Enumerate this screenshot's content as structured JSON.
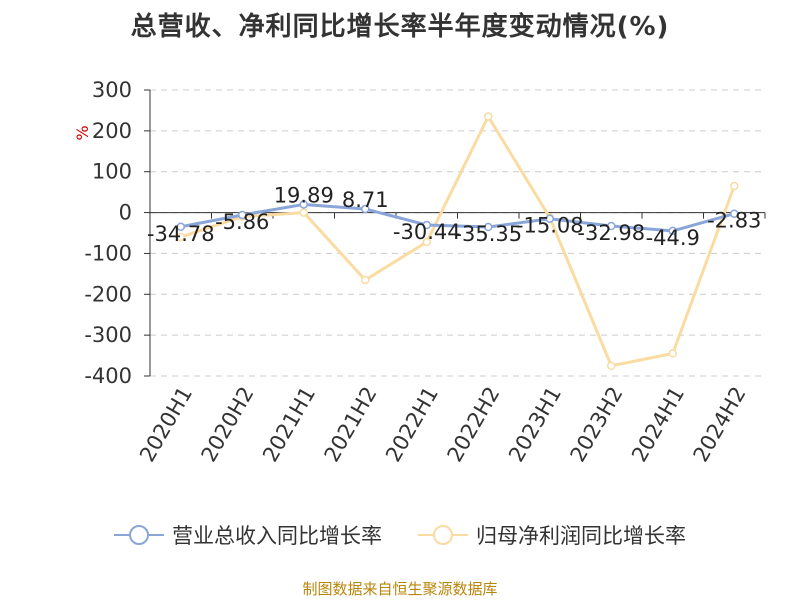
{
  "title": "总营收、净利同比增长率半年度变动情况(%)",
  "source": "制图数据来自恒生聚源数据库",
  "colors": {
    "revenue": "#8aa6d9",
    "profit": "#fadba1",
    "grid": "#cccccc",
    "axis": "#333333",
    "unit": "#cc0000",
    "source": "#b8860b"
  },
  "chart_data": {
    "type": "line",
    "ylabel": "%",
    "ylim": [
      -400,
      300
    ],
    "yticks": [
      "300",
      "200",
      "100",
      "0",
      "-100",
      "-200",
      "-300",
      "-400"
    ],
    "categories": [
      "2020H1",
      "2020H2",
      "2021H1",
      "2021H2",
      "2022H1",
      "2022H2",
      "2023H1",
      "2023H2",
      "2024H1",
      "2024H2"
    ],
    "series": [
      {
        "name": "营业总收入同比增长率",
        "values": [
          -34.78,
          -5.86,
          19.89,
          8.71,
          -30.44,
          -35.35,
          -15.08,
          -32.98,
          -44.9,
          -2.83
        ],
        "labels": [
          "-34.78",
          "-5.86",
          "19.89",
          "8.71",
          "-30.44",
          "-35.35",
          "-15.08",
          "-32.98",
          "-44.9",
          "-2.83"
        ]
      },
      {
        "name": "归母净利润同比增长率",
        "values": [
          -60,
          -10,
          0,
          -165,
          -72,
          235,
          -12,
          -375,
          -345,
          65
        ]
      }
    ],
    "grid": true,
    "legend": "bottom"
  }
}
